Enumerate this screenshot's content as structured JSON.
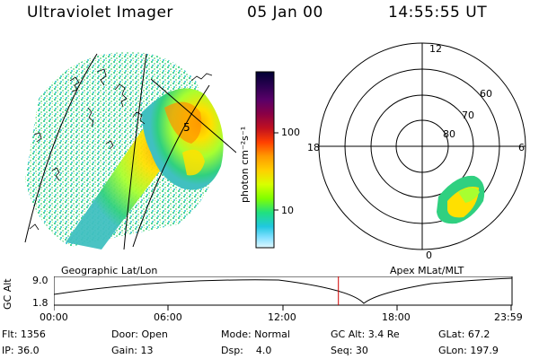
{
  "header": {
    "title": "Ultraviolet Imager",
    "date": "05 Jan 00",
    "time": "14:55:55 UT"
  },
  "geo_panel": {
    "grid_label": "5"
  },
  "colorbar": {
    "unit_label": "photon cm⁻²s⁻¹",
    "tick_high": "100",
    "tick_low": "10",
    "colors": [
      "#000033",
      "#2a0050",
      "#5a0068",
      "#8a0045",
      "#c01020",
      "#ff4000",
      "#ff9a00",
      "#ffd000",
      "#d8ff00",
      "#80ff00",
      "#20e080",
      "#20c8e0",
      "#80e0ff",
      "#e0f8ff"
    ]
  },
  "polar_plot": {
    "label_top": "12",
    "label_bottom": "0",
    "label_left": "18",
    "label_right": "6",
    "lat_60": "60",
    "lat_70": "70",
    "lat_80": "80"
  },
  "timeline": {
    "axis_label": "GC Alt",
    "y_high": "9.0",
    "y_low": "1.8",
    "left_caption": "Geographic Lat/Lon",
    "right_caption": "Apex  MLat/MLT",
    "ticks": [
      "00:00",
      "06:00",
      "12:00",
      "18:00",
      "23:59"
    ],
    "current_time_fraction": 0.6222
  },
  "info_rows": [
    [
      "Flt: 1356",
      "Door: Open",
      "Mode: Normal",
      "GC Alt: 3.4 Re",
      "GLat: 67.2"
    ],
    [
      "IP: 36.0",
      "Gain: 13",
      "Dsp:    4.0",
      "Seq: 30",
      "GLon: 197.9"
    ]
  ]
}
